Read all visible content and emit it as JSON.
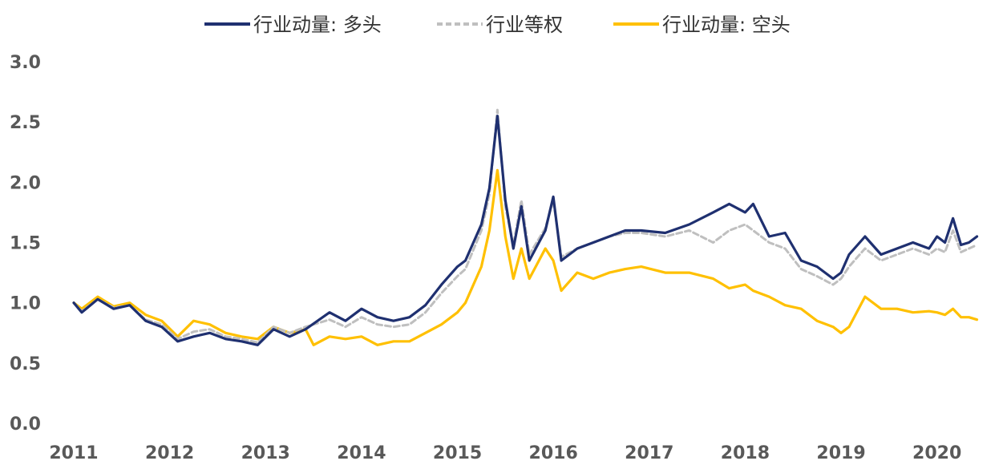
{
  "chart_data": {
    "type": "line",
    "title": "",
    "xlabel": "",
    "ylabel": "",
    "ylim": [
      0,
      3.0
    ],
    "xlim": [
      "2011-01-01",
      "2020-06-30"
    ],
    "y_ticks": [
      "0.0",
      "0.5",
      "1.0",
      "1.5",
      "2.0",
      "2.5",
      "3.0"
    ],
    "x_ticks": [
      "2011",
      "2012",
      "2013",
      "2014",
      "2015",
      "2016",
      "2017",
      "2018",
      "2019",
      "2020"
    ],
    "grid": false,
    "legend_position": "top",
    "series": [
      {
        "name": "行业动量: 多头",
        "color": "#1f3070",
        "style": "solid",
        "x": [
          "2011-01",
          "2011-02",
          "2011-04",
          "2011-06",
          "2011-08",
          "2011-10",
          "2011-12",
          "2012-02",
          "2012-04",
          "2012-06",
          "2012-08",
          "2012-10",
          "2012-12",
          "2013-02",
          "2013-04",
          "2013-06",
          "2013-09",
          "2013-11",
          "2014-01",
          "2014-03",
          "2014-05",
          "2014-07",
          "2014-09",
          "2014-11",
          "2015-01",
          "2015-02",
          "2015-04",
          "2015-05",
          "2015-06",
          "2015-07",
          "2015-08",
          "2015-09",
          "2015-10",
          "2015-12",
          "2016-01",
          "2016-02",
          "2016-04",
          "2016-06",
          "2016-08",
          "2016-10",
          "2016-12",
          "2017-03",
          "2017-06",
          "2017-09",
          "2017-11",
          "2018-01",
          "2018-02",
          "2018-04",
          "2018-06",
          "2018-08",
          "2018-10",
          "2018-12",
          "2019-01",
          "2019-02",
          "2019-04",
          "2019-06",
          "2019-08",
          "2019-10",
          "2019-12",
          "2020-01",
          "2020-02",
          "2020-03",
          "2020-04",
          "2020-05",
          "2020-06"
        ],
        "y": [
          1.0,
          0.92,
          1.03,
          0.95,
          0.98,
          0.85,
          0.8,
          0.68,
          0.72,
          0.75,
          0.7,
          0.68,
          0.65,
          0.78,
          0.72,
          0.78,
          0.92,
          0.85,
          0.95,
          0.88,
          0.85,
          0.88,
          0.98,
          1.15,
          1.3,
          1.35,
          1.65,
          1.95,
          2.55,
          1.85,
          1.45,
          1.8,
          1.35,
          1.6,
          1.88,
          1.35,
          1.45,
          1.5,
          1.55,
          1.6,
          1.6,
          1.58,
          1.65,
          1.75,
          1.82,
          1.75,
          1.82,
          1.55,
          1.58,
          1.35,
          1.3,
          1.2,
          1.25,
          1.4,
          1.55,
          1.4,
          1.45,
          1.5,
          1.45,
          1.55,
          1.5,
          1.7,
          1.48,
          1.5,
          1.55
        ]
      },
      {
        "name": "行业等权",
        "color": "#bfbfbf",
        "style": "dashed",
        "x": [
          "2011-01",
          "2011-02",
          "2011-04",
          "2011-06",
          "2011-08",
          "2011-10",
          "2011-12",
          "2012-02",
          "2012-04",
          "2012-06",
          "2012-08",
          "2012-10",
          "2012-12",
          "2013-02",
          "2013-04",
          "2013-06",
          "2013-09",
          "2013-11",
          "2014-01",
          "2014-03",
          "2014-05",
          "2014-07",
          "2014-09",
          "2014-11",
          "2015-01",
          "2015-02",
          "2015-04",
          "2015-05",
          "2015-06",
          "2015-07",
          "2015-08",
          "2015-09",
          "2015-10",
          "2015-12",
          "2016-01",
          "2016-02",
          "2016-04",
          "2016-06",
          "2016-08",
          "2016-10",
          "2016-12",
          "2017-03",
          "2017-06",
          "2017-09",
          "2017-11",
          "2018-01",
          "2018-02",
          "2018-04",
          "2018-06",
          "2018-08",
          "2018-10",
          "2018-12",
          "2019-01",
          "2019-02",
          "2019-04",
          "2019-06",
          "2019-08",
          "2019-10",
          "2019-12",
          "2020-01",
          "2020-02",
          "2020-03",
          "2020-04",
          "2020-05",
          "2020-06"
        ],
        "y": [
          1.0,
          0.93,
          1.03,
          0.96,
          0.98,
          0.86,
          0.82,
          0.7,
          0.76,
          0.78,
          0.72,
          0.7,
          0.67,
          0.8,
          0.75,
          0.8,
          0.86,
          0.8,
          0.88,
          0.82,
          0.8,
          0.82,
          0.92,
          1.08,
          1.22,
          1.28,
          1.6,
          1.9,
          2.6,
          1.8,
          1.48,
          1.85,
          1.4,
          1.62,
          1.85,
          1.38,
          1.45,
          1.5,
          1.55,
          1.58,
          1.58,
          1.55,
          1.6,
          1.5,
          1.6,
          1.65,
          1.6,
          1.5,
          1.45,
          1.28,
          1.22,
          1.15,
          1.2,
          1.3,
          1.45,
          1.35,
          1.4,
          1.45,
          1.4,
          1.45,
          1.42,
          1.6,
          1.42,
          1.45,
          1.48
        ]
      },
      {
        "name": "行业动量: 空头",
        "color": "#ffc000",
        "style": "solid",
        "x": [
          "2011-01",
          "2011-02",
          "2011-04",
          "2011-06",
          "2011-08",
          "2011-10",
          "2011-12",
          "2012-02",
          "2012-04",
          "2012-06",
          "2012-08",
          "2012-10",
          "2012-12",
          "2013-02",
          "2013-04",
          "2013-06",
          "2013-07",
          "2013-09",
          "2013-11",
          "2014-01",
          "2014-03",
          "2014-05",
          "2014-07",
          "2014-09",
          "2014-11",
          "2015-01",
          "2015-02",
          "2015-04",
          "2015-05",
          "2015-06",
          "2015-07",
          "2015-08",
          "2015-09",
          "2015-10",
          "2015-12",
          "2016-01",
          "2016-02",
          "2016-04",
          "2016-06",
          "2016-08",
          "2016-10",
          "2016-12",
          "2017-03",
          "2017-06",
          "2017-09",
          "2017-11",
          "2018-01",
          "2018-02",
          "2018-04",
          "2018-06",
          "2018-08",
          "2018-10",
          "2018-12",
          "2019-01",
          "2019-02",
          "2019-04",
          "2019-06",
          "2019-08",
          "2019-10",
          "2019-12",
          "2020-01",
          "2020-02",
          "2020-03",
          "2020-04",
          "2020-05",
          "2020-06"
        ],
        "y": [
          1.0,
          0.95,
          1.05,
          0.97,
          1.0,
          0.9,
          0.85,
          0.72,
          0.85,
          0.82,
          0.75,
          0.72,
          0.7,
          0.8,
          0.75,
          0.78,
          0.65,
          0.72,
          0.7,
          0.72,
          0.65,
          0.68,
          0.68,
          0.75,
          0.82,
          0.92,
          1.0,
          1.3,
          1.6,
          2.1,
          1.55,
          1.2,
          1.45,
          1.2,
          1.45,
          1.35,
          1.1,
          1.25,
          1.2,
          1.25,
          1.28,
          1.3,
          1.25,
          1.25,
          1.2,
          1.12,
          1.15,
          1.1,
          1.05,
          0.98,
          0.95,
          0.85,
          0.8,
          0.75,
          0.8,
          1.05,
          0.95,
          0.95,
          0.92,
          0.93,
          0.92,
          0.9,
          0.95,
          0.88,
          0.88,
          0.86
        ]
      }
    ]
  }
}
